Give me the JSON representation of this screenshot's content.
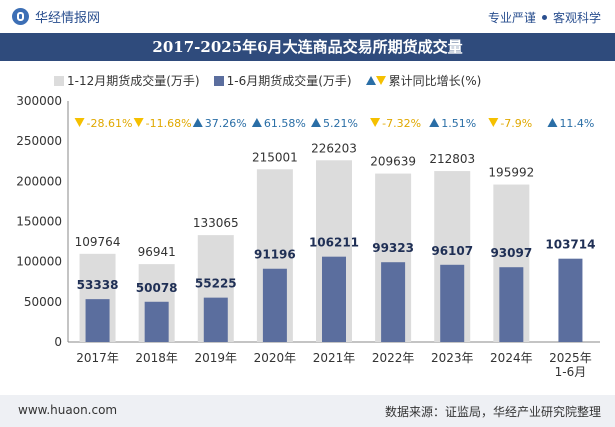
{
  "header": {
    "brand": "华经情报网",
    "tagline_left": "专业严谨",
    "tagline_right": "客观科学",
    "title": "2017-2025年6月大连商品交易所期货成交量"
  },
  "footer": {
    "url": "www.huaon.com",
    "source": "数据来源：证监局，华经产业研究院整理"
  },
  "colors": {
    "annual_bar": "#dcdcdc",
    "h1_bar": "#5b6e9e",
    "up": "#2a6ea6",
    "down": "#f5c000",
    "title_bg": "#2f4b7c"
  },
  "chart_data": {
    "type": "bar",
    "categories": [
      "2017年",
      "2018年",
      "2019年",
      "2020年",
      "2021年",
      "2022年",
      "2023年",
      "2024年",
      "2025年\n1-6月"
    ],
    "series": [
      {
        "name": "1-12月期货成交量(万手)",
        "values": [
          109764,
          96941,
          133065,
          215001,
          226203,
          209639,
          212803,
          195992,
          null
        ]
      },
      {
        "name": "1-6月期货成交量(万手)",
        "values": [
          53338,
          50078,
          55225,
          91196,
          106211,
          99323,
          96107,
          93097,
          103714
        ]
      }
    ],
    "growth": {
      "name": "累计同比增长(%)",
      "values": [
        -28.61,
        -11.68,
        37.26,
        61.58,
        5.21,
        -7.32,
        1.51,
        -7.9,
        11.4
      ],
      "labels": [
        "-28.61%",
        "-11.68%",
        "37.26%",
        "61.58%",
        "5.21%",
        "-7.32%",
        "1.51%",
        "-7.9%",
        "11.4%"
      ]
    },
    "yticks": [
      0,
      50000,
      100000,
      150000,
      200000,
      250000,
      300000
    ],
    "ylim": [
      0,
      300000
    ],
    "legend_position": "top",
    "grid": false
  }
}
